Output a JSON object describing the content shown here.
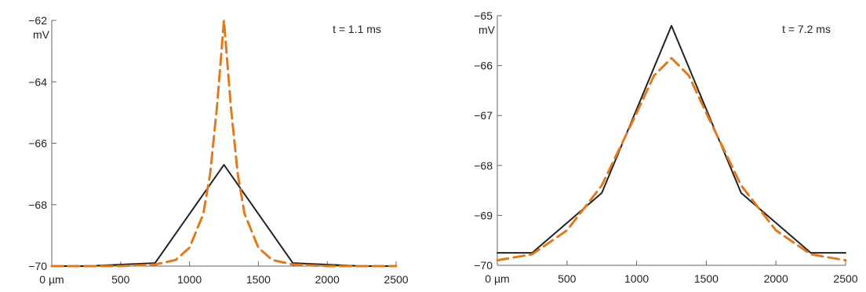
{
  "chart_data": [
    {
      "type": "line",
      "annotation": "t = 1.1 ms",
      "xlabel": "",
      "ylabel": "mV",
      "x_tick_labels": [
        "0 µm",
        "500",
        "1000",
        "1500",
        "2000",
        "2500"
      ],
      "y_tick_labels": [
        "−62",
        "−64",
        "−66",
        "−68",
        "−70"
      ],
      "x_ticks": [
        0,
        500,
        1000,
        1500,
        2000,
        2500
      ],
      "y_ticks": [
        -62,
        -64,
        -66,
        -68,
        -70
      ],
      "xlim": [
        0,
        2500
      ],
      "ylim": [
        -70,
        -62
      ],
      "grid": false,
      "series": [
        {
          "style": "solid",
          "color": "#222222",
          "x": [
            0,
            250,
            750,
            1250,
            1750,
            2250,
            2500
          ],
          "y": [
            -70.0,
            -70.0,
            -69.9,
            -66.7,
            -69.9,
            -70.0,
            -70.0
          ]
        },
        {
          "style": "dashed",
          "color": "#e07a1f",
          "x": [
            0,
            500,
            750,
            900,
            1000,
            1100,
            1150,
            1200,
            1250,
            1300,
            1350,
            1400,
            1500,
            1600,
            1750,
            2000,
            2500
          ],
          "y": [
            -70.0,
            -70.0,
            -69.95,
            -69.8,
            -69.4,
            -68.3,
            -67.0,
            -64.8,
            -62.0,
            -64.8,
            -67.0,
            -68.3,
            -69.4,
            -69.8,
            -69.95,
            -70.0,
            -70.0
          ]
        }
      ]
    },
    {
      "type": "line",
      "annotation": "t = 7.2 ms",
      "xlabel": "",
      "ylabel": "mV",
      "x_tick_labels": [
        "0 µm",
        "500",
        "1000",
        "1500",
        "2000",
        "2500"
      ],
      "y_tick_labels": [
        "−65",
        "−66",
        "−67",
        "−68",
        "−69",
        "−70"
      ],
      "x_ticks": [
        0,
        500,
        1000,
        1500,
        2000,
        2500
      ],
      "y_ticks": [
        -65,
        -66,
        -67,
        -68,
        -69,
        -70
      ],
      "xlim": [
        0,
        2500
      ],
      "ylim": [
        -70,
        -65
      ],
      "grid": false,
      "series": [
        {
          "style": "solid",
          "color": "#222222",
          "x": [
            0,
            250,
            750,
            1250,
            1750,
            2250,
            2500
          ],
          "y": [
            -69.75,
            -69.75,
            -68.55,
            -65.2,
            -68.55,
            -69.75,
            -69.75
          ]
        },
        {
          "style": "dashed",
          "color": "#e07a1f",
          "x": [
            0,
            250,
            500,
            750,
            1000,
            1125,
            1250,
            1375,
            1500,
            1750,
            2000,
            2250,
            2500
          ],
          "y": [
            -69.9,
            -69.78,
            -69.3,
            -68.4,
            -66.95,
            -66.2,
            -65.85,
            -66.2,
            -66.95,
            -68.4,
            -69.3,
            -69.78,
            -69.9
          ]
        }
      ]
    }
  ]
}
